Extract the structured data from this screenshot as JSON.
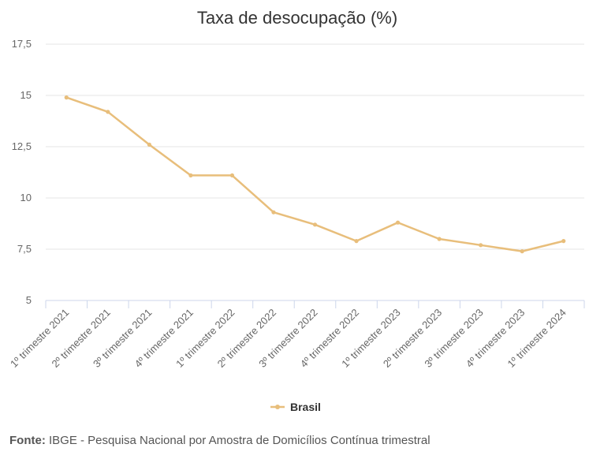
{
  "chart_data": {
    "type": "line",
    "title": "Taxa de desocupação (%)",
    "categories": [
      "1º trimestre 2021",
      "2º trimestre 2021",
      "3º trimestre 2021",
      "4º trimestre 2021",
      "1º trimestre 2022",
      "2º trimestre 2022",
      "3º trimestre 2022",
      "4º trimestre 2022",
      "1º trimestre 2023",
      "2º trimestre 2023",
      "3º trimestre 2023",
      "4º trimestre 2023",
      "1º trimestre 2024"
    ],
    "series": [
      {
        "name": "Brasil",
        "values": [
          14.9,
          14.2,
          12.6,
          11.1,
          11.1,
          9.3,
          8.7,
          7.9,
          8.8,
          8.0,
          7.7,
          7.4,
          7.9
        ]
      }
    ],
    "ylim": [
      5,
      17.5
    ],
    "yticks": [
      {
        "value": 5,
        "label": "5"
      },
      {
        "value": 7.5,
        "label": "7,5"
      },
      {
        "value": 10,
        "label": "10"
      },
      {
        "value": 12.5,
        "label": "12,5"
      },
      {
        "value": 15,
        "label": "15"
      },
      {
        "value": 17.5,
        "label": "17,5"
      }
    ],
    "grid": true,
    "legend_position": "bottom-center",
    "colors": {
      "series": "#e8be7b",
      "grid": "#e6e6e6",
      "axis": "#ccd6eb"
    }
  },
  "source": {
    "label": "Fonte:",
    "text": "IBGE - Pesquisa Nacional por Amostra de Domicílios Contínua trimestral"
  }
}
